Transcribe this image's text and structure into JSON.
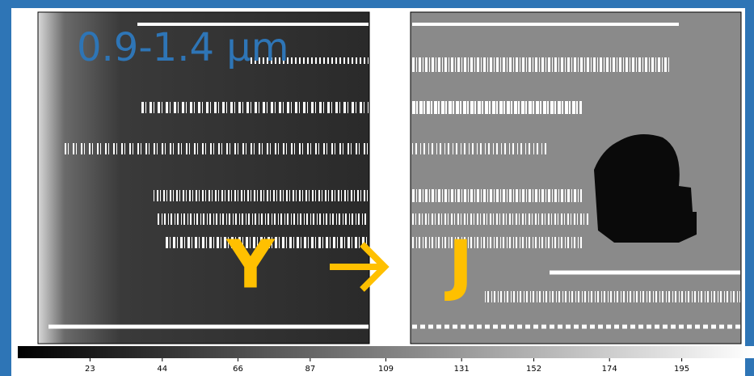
{
  "title": "0.9-1.4 μm",
  "labels": {
    "left": "Y",
    "right": "J"
  },
  "colorbar": {
    "lim": [
      2,
      216
    ],
    "ticks": [
      23,
      44,
      66,
      87,
      109,
      131,
      152,
      174,
      195
    ]
  }
}
